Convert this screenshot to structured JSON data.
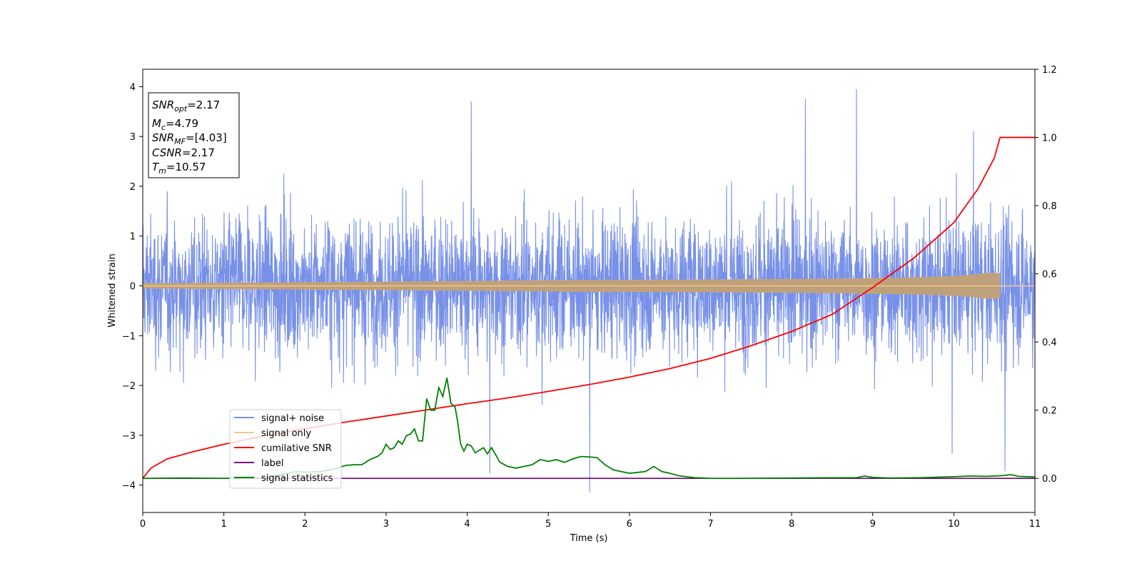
{
  "chart_data": {
    "type": "line",
    "xlabel": "Time (s)",
    "ylabel": "Whitened strain",
    "xlim": [
      0,
      11
    ],
    "ylim": [
      -4.55,
      4.35
    ],
    "y2lim": [
      -0.1,
      1.2
    ],
    "xticks": [
      "0",
      "1",
      "2",
      "3",
      "4",
      "5",
      "6",
      "7",
      "8",
      "9",
      "10",
      "11"
    ],
    "yticks": [
      "4",
      "3",
      "2",
      "1",
      "0",
      "−1",
      "−2",
      "−3",
      "−4"
    ],
    "y2ticks": [
      "1.2",
      "1.0",
      "0.8",
      "0.6",
      "0.4",
      "0.2",
      "0.0"
    ],
    "grid": false,
    "legend_position": "lower-left",
    "annotation": {
      "lines": [
        {
          "base": "SNR",
          "sub": "opt",
          "value": "=2.17"
        },
        {
          "base": "M",
          "sub": "c",
          "value": "=4.79"
        },
        {
          "base": "SNR",
          "sub": "MF",
          "value": "=[4.03]"
        },
        {
          "base": "CSNR",
          "sub": "",
          "value": "=2.17"
        },
        {
          "base": "T",
          "sub": "m",
          "value": "=10.57"
        }
      ]
    },
    "series": [
      {
        "name": "signal+ noise",
        "color": "#7891e8",
        "axis": "left",
        "amplitude_range": [
          -4.2,
          3.95
        ],
        "spikes": [
          [
            4.05,
            3.7
          ],
          [
            8.8,
            3.95
          ],
          [
            8.17,
            3.75
          ],
          [
            5.51,
            -4.15
          ],
          [
            10.63,
            -3.72
          ],
          [
            4.28,
            -3.76
          ],
          [
            9.98,
            -3.37
          ]
        ]
      },
      {
        "name": "signal only",
        "color": "#f5c98a",
        "axis": "left",
        "chirp_end": 10.57,
        "final_amplitude": 0.25
      },
      {
        "name": "cumilative SNR",
        "color": "#ff0000",
        "axis": "right",
        "x": [
          0,
          0.1,
          0.3,
          0.6,
          1,
          1.5,
          2,
          2.5,
          3,
          3.5,
          4,
          4.5,
          5,
          5.5,
          6,
          6.5,
          7,
          7.5,
          8,
          8.5,
          9,
          9.5,
          10,
          10.3,
          10.5,
          10.57,
          11
        ],
        "y": [
          0.0,
          0.03,
          0.057,
          0.077,
          0.1,
          0.125,
          0.146,
          0.165,
          0.183,
          0.201,
          0.219,
          0.236,
          0.255,
          0.275,
          0.297,
          0.322,
          0.352,
          0.389,
          0.431,
          0.481,
          0.56,
          0.645,
          0.75,
          0.85,
          0.94,
          1.0,
          1.0
        ]
      },
      {
        "name": "label",
        "color": "#800080",
        "axis": "right",
        "x": [
          0,
          11
        ],
        "y": [
          0,
          0
        ]
      },
      {
        "name": "signal statistics",
        "color": "#008000",
        "axis": "right",
        "x": [
          0,
          0.5,
          1,
          1.5,
          1.9,
          2.0,
          2.2,
          2.4,
          2.5,
          2.6,
          2.7,
          2.8,
          2.9,
          2.95,
          3.0,
          3.05,
          3.1,
          3.15,
          3.2,
          3.25,
          3.3,
          3.35,
          3.4,
          3.45,
          3.5,
          3.55,
          3.6,
          3.65,
          3.7,
          3.75,
          3.8,
          3.85,
          3.88,
          3.92,
          3.96,
          4.0,
          4.05,
          4.1,
          4.2,
          4.25,
          4.3,
          4.35,
          4.4,
          4.5,
          4.6,
          4.7,
          4.8,
          4.9,
          5.0,
          5.1,
          5.2,
          5.3,
          5.4,
          5.5,
          5.6,
          5.7,
          5.8,
          6.0,
          6.2,
          6.3,
          6.4,
          6.5,
          6.6,
          6.8,
          7.0,
          7.3,
          8.0,
          8.8,
          8.9,
          9.0,
          9.2,
          9.6,
          10.0,
          10.2,
          10.4,
          10.6,
          10.7,
          10.8,
          11.0
        ],
        "y": [
          0.0,
          0.001,
          0.0,
          0.002,
          0.02,
          0.018,
          0.02,
          0.03,
          0.038,
          0.04,
          0.04,
          0.055,
          0.065,
          0.075,
          0.1,
          0.085,
          0.09,
          0.11,
          0.1,
          0.125,
          0.13,
          0.145,
          0.11,
          0.11,
          0.234,
          0.2,
          0.2,
          0.266,
          0.24,
          0.295,
          0.22,
          0.21,
          0.17,
          0.1,
          0.08,
          0.1,
          0.095,
          0.075,
          0.09,
          0.072,
          0.09,
          0.07,
          0.048,
          0.035,
          0.03,
          0.035,
          0.04,
          0.055,
          0.05,
          0.055,
          0.047,
          0.057,
          0.064,
          0.063,
          0.061,
          0.04,
          0.025,
          0.015,
          0.02,
          0.035,
          0.02,
          0.015,
          0.008,
          0.002,
          0.0,
          0.0,
          0.001,
          0.002,
          0.007,
          0.003,
          0.001,
          0.002,
          0.005,
          0.007,
          0.006,
          0.008,
          0.011,
          0.006,
          0.004
        ]
      }
    ]
  }
}
